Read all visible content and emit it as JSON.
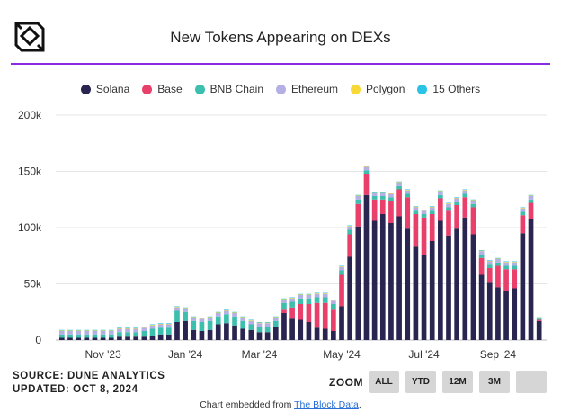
{
  "header": {
    "title": "New Tokens Appearing on DEXs"
  },
  "legend": [
    {
      "label": "Solana",
      "color": "#2a2550"
    },
    {
      "label": "Base",
      "color": "#e8406a"
    },
    {
      "label": "BNB Chain",
      "color": "#3dbfae"
    },
    {
      "label": "Ethereum",
      "color": "#b4b0e6"
    },
    {
      "label": "Polygon",
      "color": "#f7d836"
    },
    {
      "label": "15 Others",
      "color": "#29c3e6"
    }
  ],
  "footer": {
    "source": "SOURCE: DUNE ANALYTICS",
    "updated": "UPDATED: OCT 8, 2024",
    "zoom_label": "ZOOM",
    "zoom_buttons": [
      "ALL",
      "YTD",
      "12M",
      "3M",
      ""
    ],
    "embedded_prefix": "Chart embedded from ",
    "embedded_link": "The Block Data",
    "embedded_suffix": "."
  },
  "chart_data": {
    "type": "bar",
    "stacked": true,
    "ylim": [
      0,
      200000
    ],
    "yticks": [
      "0",
      "50k",
      "100k",
      "150k",
      "200k"
    ],
    "ytick_values": [
      0,
      50000,
      100000,
      150000,
      200000
    ],
    "xticks": [
      "Nov '23",
      "Jan '24",
      "Mar '24",
      "May '24",
      "Jul '24",
      "Sep '24"
    ],
    "xtick_bar_index": [
      5,
      15,
      24,
      34,
      44,
      53
    ],
    "series": [
      {
        "name": "Solana",
        "color": "#2a2550",
        "values": [
          2000,
          2000,
          2000,
          2000,
          2000,
          2000,
          2000,
          3000,
          3000,
          3000,
          3000,
          4000,
          5000,
          5000,
          16000,
          17000,
          9000,
          8000,
          9000,
          14000,
          15000,
          13000,
          10000,
          9000,
          7000,
          7000,
          12000,
          24000,
          19000,
          18000,
          16000,
          11000,
          10000,
          8000,
          30000,
          74000,
          101000,
          129000,
          106000,
          112000,
          104000,
          110000,
          99000,
          83000,
          76000,
          88000,
          106000,
          93000,
          99000,
          109000,
          94000,
          58000,
          51000,
          47000,
          44000,
          46000,
          95000,
          108000,
          17000
        ]
      },
      {
        "name": "Base",
        "color": "#e8406a",
        "values": [
          0,
          0,
          0,
          0,
          0,
          0,
          0,
          0,
          0,
          0,
          0,
          0,
          0,
          0,
          0,
          0,
          0,
          0,
          0,
          0,
          0,
          0,
          0,
          0,
          0,
          0,
          0,
          3000,
          10000,
          14000,
          16000,
          22000,
          23000,
          19000,
          28000,
          20000,
          20000,
          19000,
          19000,
          13000,
          20000,
          24000,
          28000,
          29000,
          33000,
          24000,
          20000,
          22000,
          21000,
          18000,
          24000,
          15000,
          13000,
          19000,
          19000,
          17000,
          16000,
          14000,
          1000
        ]
      },
      {
        "name": "BNB Chain",
        "color": "#3dbfae",
        "values": [
          3000,
          3000,
          3000,
          3000,
          3000,
          3000,
          3000,
          4000,
          4000,
          4000,
          5000,
          6000,
          6000,
          6000,
          10000,
          8000,
          8000,
          8000,
          8000,
          7000,
          8000,
          8000,
          7000,
          5000,
          5000,
          5000,
          5000,
          6000,
          5000,
          5000,
          5000,
          5000,
          5000,
          5000,
          4000,
          4000,
          4000,
          3000,
          3000,
          3000,
          3000,
          3000,
          3000,
          3000,
          3000,
          3000,
          3000,
          3000,
          3000,
          3000,
          3000,
          3000,
          3000,
          3000,
          3000,
          3000,
          3000,
          3000,
          1000
        ]
      },
      {
        "name": "Ethereum",
        "color": "#b4b0e6",
        "values": [
          3000,
          3000,
          3000,
          3000,
          3000,
          3000,
          3000,
          3000,
          3000,
          3000,
          3000,
          3000,
          3000,
          3000,
          3000,
          3000,
          3000,
          3000,
          3000,
          3000,
          3000,
          3000,
          3000,
          3000,
          3000,
          3000,
          3000,
          3000,
          3000,
          3000,
          3000,
          3000,
          3000,
          3000,
          3000,
          3000,
          3000,
          3000,
          3000,
          3000,
          3000,
          3000,
          3000,
          3000,
          3000,
          3000,
          3000,
          3000,
          3000,
          3000,
          3000,
          3000,
          3000,
          3000,
          3000,
          3000,
          3000,
          3000,
          1000
        ]
      },
      {
        "name": "Polygon",
        "color": "#f7d836",
        "values": [
          500,
          500,
          500,
          500,
          500,
          500,
          500,
          500,
          500,
          500,
          500,
          500,
          500,
          500,
          500,
          500,
          500,
          500,
          500,
          500,
          500,
          500,
          500,
          500,
          500,
          500,
          500,
          500,
          500,
          500,
          500,
          500,
          500,
          500,
          500,
          500,
          500,
          500,
          500,
          500,
          500,
          500,
          500,
          500,
          500,
          500,
          500,
          500,
          500,
          500,
          500,
          500,
          500,
          500,
          500,
          500,
          500,
          500,
          300
        ]
      },
      {
        "name": "15 Others",
        "color": "#29c3e6",
        "values": [
          500,
          500,
          500,
          500,
          500,
          500,
          500,
          500,
          500,
          500,
          500,
          500,
          500,
          500,
          500,
          500,
          500,
          500,
          500,
          500,
          500,
          500,
          500,
          500,
          500,
          500,
          500,
          500,
          500,
          500,
          500,
          500,
          500,
          500,
          500,
          500,
          500,
          500,
          500,
          500,
          500,
          500,
          500,
          500,
          500,
          500,
          500,
          500,
          500,
          500,
          500,
          500,
          500,
          500,
          500,
          500,
          500,
          500,
          200
        ]
      }
    ]
  }
}
